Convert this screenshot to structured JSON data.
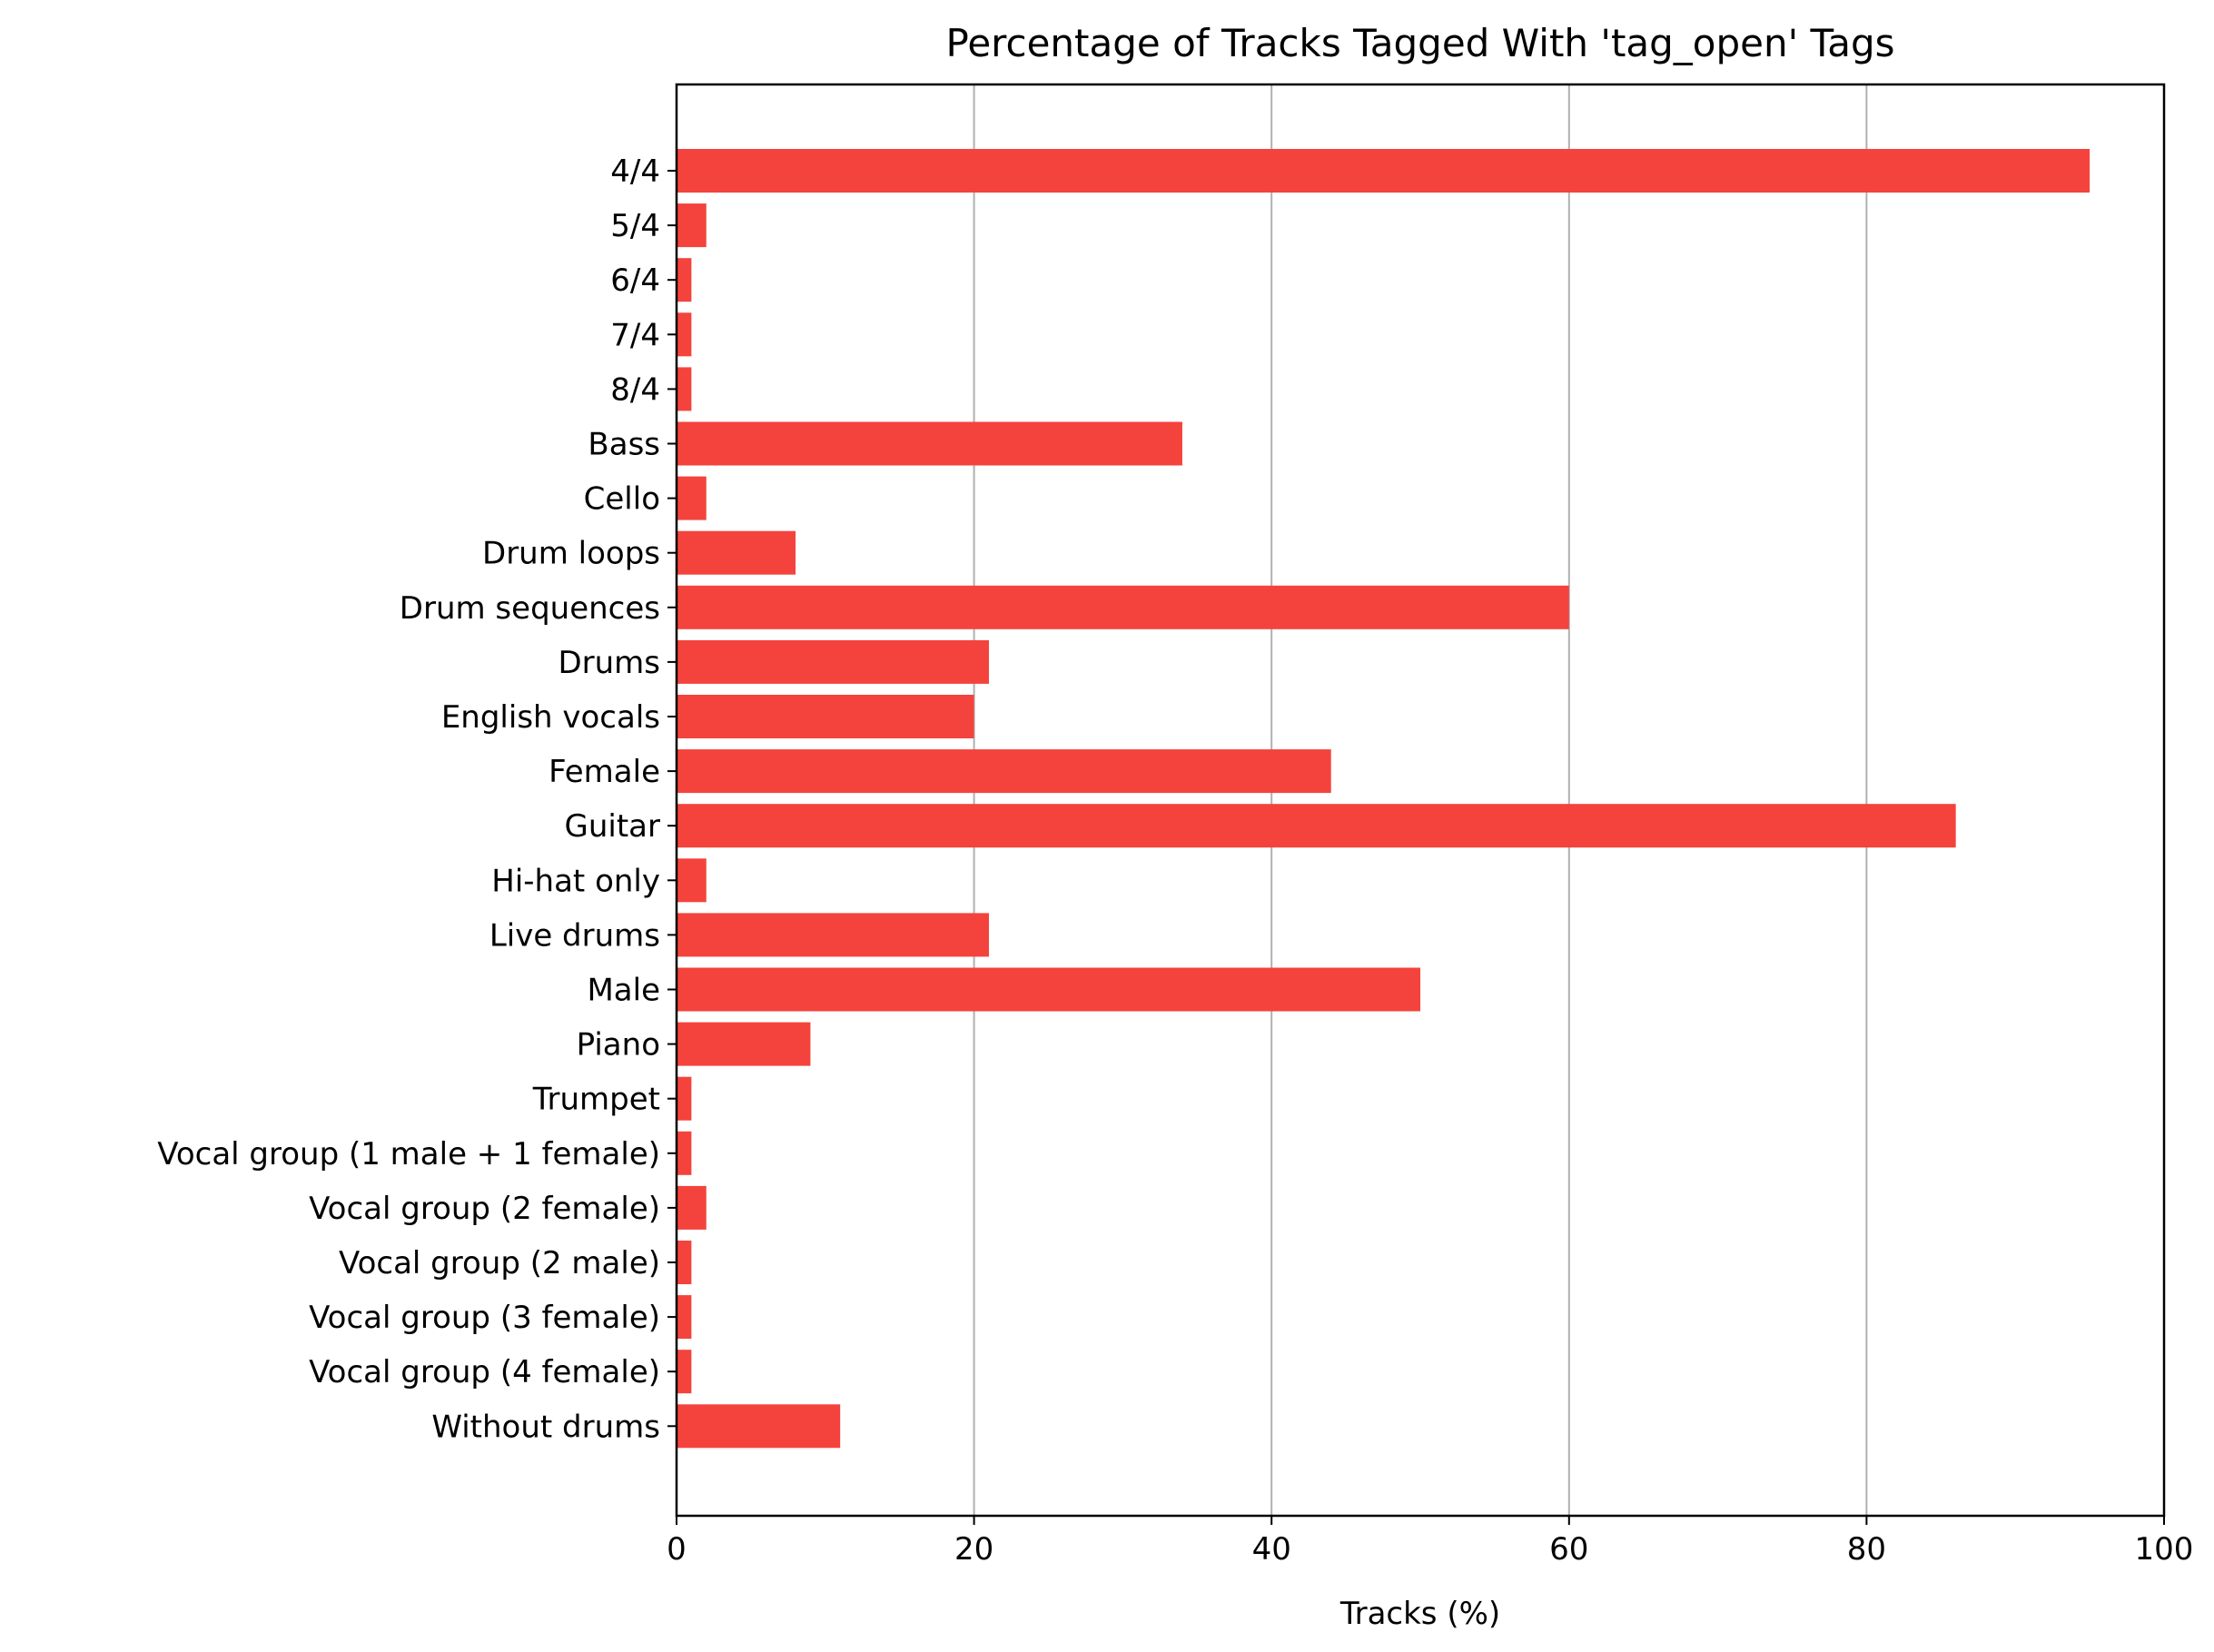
{
  "chart_data": {
    "type": "bar",
    "orientation": "horizontal",
    "title": "Percentage of Tracks Tagged With 'tag_open' Tags",
    "xlabel": "Tracks (%)",
    "ylabel": "",
    "xlim": [
      0,
      100
    ],
    "xticks": [
      0,
      20,
      40,
      60,
      80,
      100
    ],
    "grid": "vertical",
    "bar_color": "#f4433c",
    "categories": [
      "4/4",
      "5/4",
      "6/4",
      "7/4",
      "8/4",
      "Bass",
      "Cello",
      "Drum loops",
      "Drum sequences",
      "Drums",
      "English vocals",
      "Female",
      "Guitar",
      "Hi-hat only",
      "Live drums",
      "Male",
      "Piano",
      "Trumpet",
      "Vocal group (1 male + 1 female)",
      "Vocal group (2 female)",
      "Vocal group (2 male)",
      "Vocal group (3 female)",
      "Vocal group (4 female)",
      "Without drums"
    ],
    "values": [
      95,
      2,
      1,
      1,
      1,
      34,
      2,
      8,
      60,
      21,
      20,
      44,
      86,
      2,
      21,
      50,
      9,
      1,
      1,
      2,
      1,
      1,
      1,
      11
    ]
  }
}
